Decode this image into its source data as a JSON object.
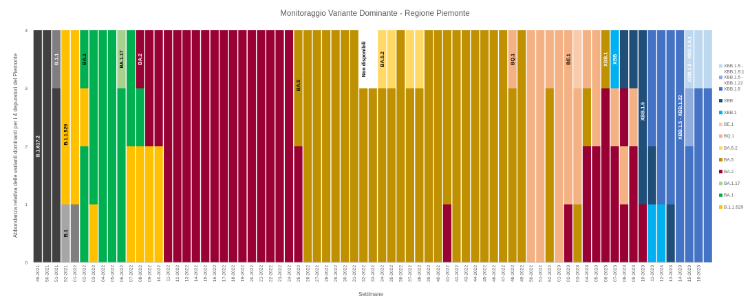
{
  "chart_data": {
    "type": "bar",
    "stacked": true,
    "title": "Monitoraggio Variante Dominante - Regione Piemonte",
    "xlabel": "Settimane",
    "ylabel": "Abbondanza relativa delle varianti dominanti per i 4 depuratori del Piemonte",
    "ylim": [
      0,
      4
    ],
    "y_ticks": [
      "0",
      "1",
      "2",
      "3",
      "4"
    ],
    "grid": false,
    "legend_position": "right",
    "categories": [
      "49-2021",
      "50-2021",
      "51-2021",
      "52-2021",
      "01-2022",
      "02-2022",
      "03-2022",
      "04-2022",
      "05-2022",
      "06-2022",
      "07-2022",
      "08-2022",
      "09-2022",
      "10-2022",
      "11-2022",
      "12-2022",
      "13-2022",
      "14-2022",
      "15-2022",
      "16-2022",
      "17-2022",
      "18-2022",
      "19-2022",
      "20-2022",
      "21-2022",
      "22-2022",
      "23-2022",
      "24-2022",
      "25-2022",
      "26-2022",
      "27-2022",
      "28-2022",
      "29-2022",
      "30-2022",
      "31-2022",
      "32-2022",
      "33-2022",
      "34-2022",
      "35-2022",
      "36-2022",
      "37-2022",
      "38-2022",
      "39-2022",
      "40-2022",
      "41-2022",
      "42-2022",
      "43-2022",
      "44-2022",
      "45-2022",
      "46-2022",
      "47-2022",
      "48-2022",
      "49-2022",
      "50-2022",
      "51-2022",
      "52-2022",
      "01-2023",
      "02-2023",
      "03-2023",
      "04-2023",
      "05-2023",
      "06-2023",
      "07-2023",
      "08-2023",
      "09-2023",
      "10-2023",
      "11-2023",
      "12-2024",
      "13-2023",
      "14-2023",
      "15-2023",
      "16-2023"
    ],
    "colors": {
      "B.1.617.2": "#404040",
      "B.1.1": "#7f7f7f",
      "B.1": "#a6a6a6",
      "B.1.1.529": "#ffc000",
      "BA.1": "#00b050",
      "BA.1.17": "#a9d18e",
      "BA.2": "#990033",
      "BA.5": "#bf9000",
      "BA.5.2": "#ffd966",
      "Non disponibili": "#ffffff",
      "BQ.1": "#f4b183",
      "BE.1": "#f8cbad",
      "XBB.1": "#00b0f0",
      "XBB": "#1f4e79",
      "XBB.1.5": "#4472c4",
      "XBB.1.5 - XBB.1.22": "#8faadc",
      "XBB.1.5 - XBB.1.9.1": "#bdd7ee"
    },
    "legend": [
      {
        "label": "XBB.1.5 - XBB.1.9.1",
        "key": "XBB.1.5 - XBB.1.9.1"
      },
      {
        "label": "XBB.1.5 - XBB.1.22",
        "key": "XBB.1.5 - XBB.1.22"
      },
      {
        "label": "XBB.1.5",
        "key": "XBB.1.5"
      },
      {
        "label": "XBB",
        "key": "XBB"
      },
      {
        "label": "XBB.1",
        "key": "XBB.1"
      },
      {
        "label": "BE.1",
        "key": "BE.1"
      },
      {
        "label": "BQ.1",
        "key": "BQ.1"
      },
      {
        "label": "BA.5.2",
        "key": "BA.5.2"
      },
      {
        "label": "BA.5",
        "key": "BA.5"
      },
      {
        "label": "BA.2",
        "key": "BA.2"
      },
      {
        "label": "BA.1.17",
        "key": "BA.1.17"
      },
      {
        "label": "BA.1",
        "key": "BA.1"
      },
      {
        "label": "B.1.1.529",
        "key": "B.1.1.529"
      }
    ],
    "stacks": [
      [
        "B.1.617.2",
        "B.1.617.2",
        "B.1.617.2",
        "B.1.617.2"
      ],
      [
        "B.1.617.2",
        "B.1.617.2",
        "B.1.617.2",
        "B.1.617.2"
      ],
      [
        "B.1.617.2",
        "B.1.617.2",
        "B.1.617.2",
        "B.1.1"
      ],
      [
        "B.1",
        "B.1.1.529",
        "B.1.1.529",
        "B.1.1.529"
      ],
      [
        "B.1.1",
        "B.1.1.529",
        "B.1.1.529",
        "B.1.1.529"
      ],
      [
        "BA.1",
        "BA.1",
        "B.1.1.529",
        "BA.1"
      ],
      [
        "B.1.1.529",
        "BA.1",
        "BA.1",
        "BA.1"
      ],
      [
        "BA.1",
        "BA.1",
        "BA.1",
        "BA.1"
      ],
      [
        "BA.1",
        "BA.1",
        "BA.1",
        "BA.1"
      ],
      [
        "BA.1",
        "BA.1",
        "BA.1",
        "BA.1.17"
      ],
      [
        "B.1.1.529",
        "B.1.1.529",
        "BA.1",
        "BA.1"
      ],
      [
        "B.1.1.529",
        "B.1.1.529",
        "BA.1",
        "BA.2"
      ],
      [
        "B.1.1.529",
        "B.1.1.529",
        "BA.2",
        "BA.2"
      ],
      [
        "B.1.1.529",
        "B.1.1.529",
        "BA.2",
        "BA.2"
      ],
      [
        "BA.2",
        "BA.2",
        "BA.2",
        "BA.2"
      ],
      [
        "BA.2",
        "BA.2",
        "BA.2",
        "BA.2"
      ],
      [
        "BA.2",
        "BA.2",
        "BA.2",
        "BA.2"
      ],
      [
        "BA.2",
        "BA.2",
        "BA.2",
        "BA.2"
      ],
      [
        "BA.2",
        "BA.2",
        "BA.2",
        "BA.2"
      ],
      [
        "BA.2",
        "BA.2",
        "BA.2",
        "BA.2"
      ],
      [
        "BA.2",
        "BA.2",
        "BA.2",
        "BA.2"
      ],
      [
        "BA.2",
        "BA.2",
        "BA.2",
        "BA.2"
      ],
      [
        "BA.2",
        "BA.2",
        "BA.2",
        "BA.2"
      ],
      [
        "BA.2",
        "BA.2",
        "BA.2",
        "BA.2"
      ],
      [
        "BA.2",
        "BA.2",
        "BA.2",
        "BA.2"
      ],
      [
        "BA.2",
        "BA.2",
        "BA.2",
        "BA.2"
      ],
      [
        "BA.2",
        "BA.2",
        "BA.2",
        "BA.2"
      ],
      [
        "BA.2",
        "BA.2",
        "BA.2",
        "BA.2"
      ],
      [
        "BA.2",
        "BA.2",
        "BA.5",
        "BA.5"
      ],
      [
        "BA.5",
        "BA.5",
        "BA.5",
        "BA.5"
      ],
      [
        "BA.5",
        "BA.5",
        "BA.5",
        "BA.5"
      ],
      [
        "BA.5",
        "BA.5",
        "BA.5",
        "BA.5"
      ],
      [
        "BA.5",
        "BA.5",
        "BA.5",
        "BA.5"
      ],
      [
        "BA.5",
        "BA.5",
        "BA.5",
        "BA.5"
      ],
      [
        "BA.5",
        "BA.5",
        "BA.5",
        "BA.5"
      ],
      [
        "BA.5",
        "BA.5",
        "BA.5",
        "Non disponibili"
      ],
      [
        "BA.5",
        "BA.5",
        "BA.5",
        "Non disponibili"
      ],
      [
        "BA.5",
        "BA.5",
        "BA.5",
        "BA.5.2"
      ],
      [
        "BA.5",
        "BA.5",
        "BA.5",
        "BA.5.2"
      ],
      [
        "BA.5",
        "BA.5",
        "BA.5",
        "BA.5"
      ],
      [
        "BA.5",
        "BA.5",
        "BA.5",
        "BA.5.2"
      ],
      [
        "BA.5",
        "BA.5",
        "BA.5",
        "BA.5.2"
      ],
      [
        "BA.5",
        "BA.5",
        "BA.5",
        "BA.5"
      ],
      [
        "BA.5",
        "BA.5",
        "BA.5",
        "BA.5"
      ],
      [
        "BA.2",
        "BA.5",
        "BA.5",
        "BA.5"
      ],
      [
        "BA.5",
        "BA.5",
        "BA.5",
        "BA.5"
      ],
      [
        "BA.5",
        "BA.5",
        "BA.5",
        "BA.5"
      ],
      [
        "BA.5",
        "BA.5",
        "BA.5",
        "BA.5"
      ],
      [
        "BA.5",
        "BA.5",
        "BA.5",
        "BA.5"
      ],
      [
        "BA.5",
        "BA.5",
        "BA.5",
        "BA.5"
      ],
      [
        "BA.5",
        "BA.5",
        "BA.5",
        "BA.5"
      ],
      [
        "BA.5",
        "BA.5",
        "BA.5",
        "BQ.1"
      ],
      [
        "BA.5",
        "BA.5",
        "BA.5",
        "BA.5"
      ],
      [
        "BQ.1",
        "BQ.1",
        "BQ.1",
        "BQ.1"
      ],
      [
        "BQ.1",
        "BQ.1",
        "BQ.1",
        "BQ.1"
      ],
      [
        "BA.5",
        "BA.5",
        "BA.5",
        "BQ.1"
      ],
      [
        "BQ.1",
        "BQ.1",
        "BQ.1",
        "BQ.1"
      ],
      [
        "BA.2",
        "BQ.1",
        "BQ.1",
        "BQ.1"
      ],
      [
        "BA.5",
        "BQ.1",
        "BQ.1",
        "BE.1"
      ],
      [
        "BA.2",
        "BA.2",
        "BA.5",
        "BQ.1"
      ],
      [
        "BA.2",
        "BA.2",
        "BQ.1",
        "BQ.1"
      ],
      [
        "BA.2",
        "BA.2",
        "BA.2",
        "BA.5"
      ],
      [
        "BA.2",
        "BA.2",
        "BQ.1",
        "XBB.1"
      ],
      [
        "BA.2",
        "BQ.1",
        "BA.2",
        "XBB"
      ],
      [
        "BA.2",
        "BA.2",
        "BQ.1",
        "XBB"
      ],
      [
        "BA.2",
        "XBB",
        "XBB",
        "XBB"
      ],
      [
        "XBB.1",
        "XBB",
        "XBB.1.5",
        "XBB.1.5"
      ],
      [
        "XBB.1",
        "XBB.1.5",
        "XBB.1.5",
        "XBB.1.5"
      ],
      [
        "XBB",
        "XBB.1.5",
        "XBB.1.5",
        "XBB.1.5"
      ],
      [
        "XBB.1.5",
        "XBB.1.5",
        "XBB.1.5",
        "XBB.1.5"
      ],
      [
        "XBB.1.5",
        "XBB.1.5",
        "XBB.1.5 - XBB.1.22",
        "XBB.1.5 - XBB.1.9.1"
      ],
      [
        "XBB.1.5",
        "XBB.1.5",
        "XBB.1.5",
        "XBB.1.5 - XBB.1.9.1"
      ],
      [
        "XBB.1.5",
        "XBB.1.5",
        "XBB.1.5",
        "XBB.1.5 - XBB.1.9.1"
      ]
    ],
    "annotations": [
      {
        "text": "B.1.617.2",
        "x": "49-2021",
        "y": 2.0,
        "color": "#ffffff"
      },
      {
        "text": "B.1.1",
        "x": "51-2021",
        "y": 3.5,
        "color": "#ffffff"
      },
      {
        "text": "B.1",
        "x": "52-2021",
        "y": 0.5,
        "color": "#000000"
      },
      {
        "text": "B.1.1.529",
        "x": "52-2021",
        "y": 2.2,
        "color": "#000000"
      },
      {
        "text": "BA.1",
        "x": "02-2022",
        "y": 3.5,
        "color": "#000000"
      },
      {
        "text": "BA.1.17",
        "x": "06-2022",
        "y": 3.5,
        "color": "#000000"
      },
      {
        "text": "BA.2",
        "x": "08-2022",
        "y": 3.5,
        "color": "#ffffff"
      },
      {
        "text": "BA.5",
        "x": "25-2022",
        "y": 3.05,
        "color": "#000000"
      },
      {
        "text": "Non disponibili",
        "x": "32-2022",
        "y": 3.5,
        "color": "#000000"
      },
      {
        "text": "BA.5.2",
        "x": "34-2022",
        "y": 3.5,
        "color": "#000000"
      },
      {
        "text": "BQ.1",
        "x": "48-2022",
        "y": 3.5,
        "color": "#000000"
      },
      {
        "text": "BE.1",
        "x": "02-2023",
        "y": 3.5,
        "color": "#000000"
      },
      {
        "text": "XBB.1",
        "x": "06-2023",
        "y": 3.5,
        "color": "#ffffff"
      },
      {
        "text": "XBB",
        "x": "07-2023",
        "y": 3.5,
        "color": "#ffffff"
      },
      {
        "text": "XBB.1.5",
        "x": "10-2023",
        "y": 2.6,
        "color": "#ffffff"
      },
      {
        "text": "XBB.1.5 - XBB.1.22",
        "x": "14-2023",
        "y": 2.5,
        "color": "#ffffff"
      },
      {
        "text": "XBB.1.5 - XBB.1.9.1",
        "x": "15-2023",
        "y": 3.5,
        "color": "#ffffff"
      }
    ]
  }
}
